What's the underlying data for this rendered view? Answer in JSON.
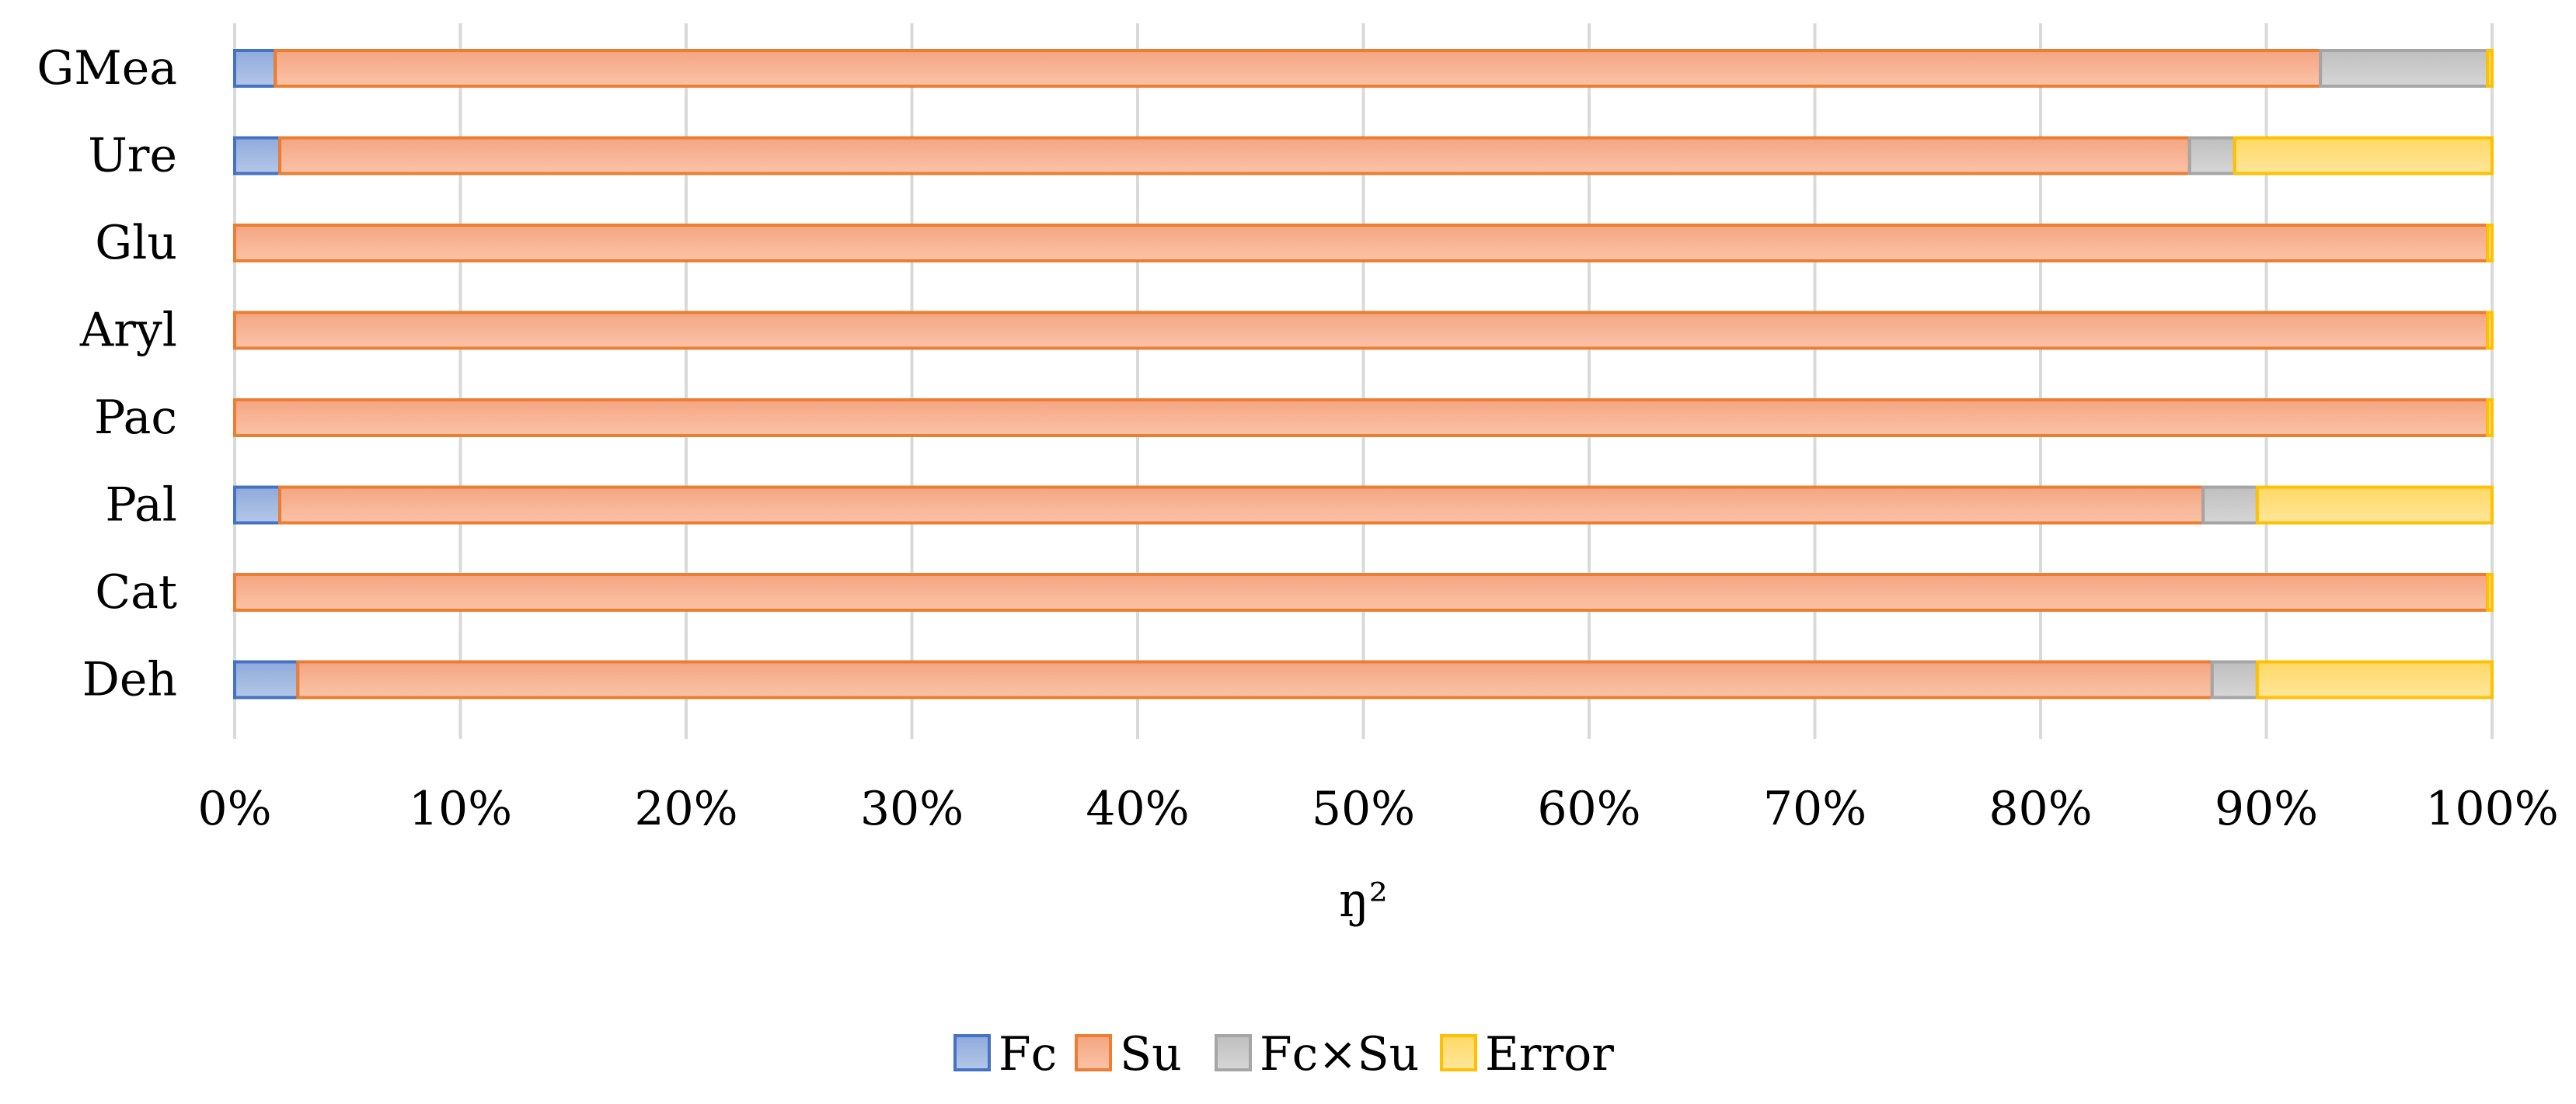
{
  "chart_data": {
    "type": "bar",
    "orientation": "horizontal",
    "stacked": "percent",
    "categories": [
      "GMea",
      "Ure",
      "Glu",
      "Aryl",
      "Pac",
      "Pal",
      "Cat",
      "Deh"
    ],
    "series": [
      {
        "name": "Fc",
        "color": "#4472C4",
        "values": [
          1.8,
          2.0,
          0.0,
          0.0,
          0.0,
          2.0,
          0.0,
          2.8
        ]
      },
      {
        "name": "Su",
        "color": "#ED7D31",
        "values": [
          90.6,
          84.6,
          99.8,
          99.8,
          99.8,
          85.2,
          99.8,
          84.8
        ]
      },
      {
        "name": "Fc×Su",
        "color": "#A5A5A5",
        "values": [
          7.4,
          2.0,
          0.0,
          0.0,
          0.0,
          2.4,
          0.0,
          2.0
        ]
      },
      {
        "name": "Error",
        "color": "#FFC000",
        "values": [
          0.2,
          11.4,
          0.2,
          0.2,
          0.2,
          10.4,
          0.2,
          10.4
        ]
      }
    ],
    "x_ticks": [
      "0%",
      "10%",
      "20%",
      "30%",
      "40%",
      "50%",
      "60%",
      "70%",
      "80%",
      "90%",
      "100%"
    ],
    "xlabel": "ŋ²",
    "xlim": [
      0,
      100
    ],
    "grid": "vertical",
    "legend": "bottom"
  }
}
